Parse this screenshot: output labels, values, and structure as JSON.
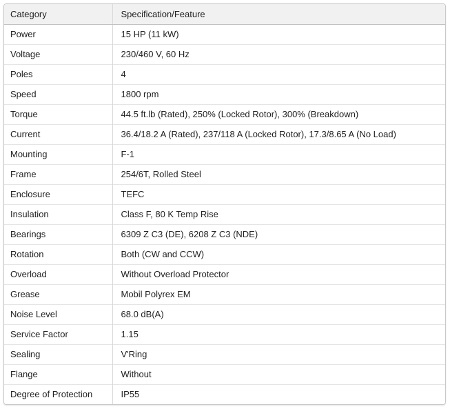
{
  "table": {
    "headers": [
      "Category",
      "Specification/Feature"
    ],
    "rows": [
      {
        "category": "Power",
        "spec": "15 HP (11 kW)"
      },
      {
        "category": "Voltage",
        "spec": "230/460 V, 60 Hz"
      },
      {
        "category": "Poles",
        "spec": "4"
      },
      {
        "category": "Speed",
        "spec": "1800 rpm"
      },
      {
        "category": "Torque",
        "spec": "44.5 ft.lb (Rated), 250% (Locked Rotor), 300% (Breakdown)"
      },
      {
        "category": "Current",
        "spec": "36.4/18.2 A (Rated), 237/118 A (Locked Rotor), 17.3/8.65 A (No Load)"
      },
      {
        "category": "Mounting",
        "spec": "F-1"
      },
      {
        "category": "Frame",
        "spec": "254/6T, Rolled Steel"
      },
      {
        "category": "Enclosure",
        "spec": "TEFC"
      },
      {
        "category": "Insulation",
        "spec": "Class F, 80 K Temp Rise"
      },
      {
        "category": "Bearings",
        "spec": "6309 Z C3 (DE), 6208 Z C3 (NDE)"
      },
      {
        "category": "Rotation",
        "spec": "Both (CW and CCW)"
      },
      {
        "category": "Overload",
        "spec": "Without Overload Protector"
      },
      {
        "category": "Grease",
        "spec": "Mobil Polyrex EM"
      },
      {
        "category": "Noise Level",
        "spec": "68.0 dB(A)"
      },
      {
        "category": "Service Factor",
        "spec": "1.15"
      },
      {
        "category": "Sealing",
        "spec": "V'Ring"
      },
      {
        "category": "Flange",
        "spec": "Without"
      },
      {
        "category": "Degree of Protection",
        "spec": "IP55"
      }
    ],
    "colors": {
      "header_bg": "#f1f1f1",
      "outer_border": "#c9c9c9",
      "header_border": "#c2c2c2",
      "row_border": "#e5e5e5",
      "column_border": "#d9d9d9",
      "text": "#212121"
    }
  },
  "chart_data": {
    "type": "table",
    "title": "",
    "columns": [
      "Category",
      "Specification/Feature"
    ],
    "rows": [
      [
        "Power",
        "15 HP (11 kW)"
      ],
      [
        "Voltage",
        "230/460 V, 60 Hz"
      ],
      [
        "Poles",
        "4"
      ],
      [
        "Speed",
        "1800 rpm"
      ],
      [
        "Torque",
        "44.5 ft.lb (Rated), 250% (Locked Rotor), 300% (Breakdown)"
      ],
      [
        "Current",
        "36.4/18.2 A (Rated), 237/118 A (Locked Rotor), 17.3/8.65 A (No Load)"
      ],
      [
        "Mounting",
        "F-1"
      ],
      [
        "Frame",
        "254/6T, Rolled Steel"
      ],
      [
        "Enclosure",
        "TEFC"
      ],
      [
        "Insulation",
        "Class F, 80 K Temp Rise"
      ],
      [
        "Bearings",
        "6309 Z C3 (DE), 6208 Z C3 (NDE)"
      ],
      [
        "Rotation",
        "Both (CW and CCW)"
      ],
      [
        "Overload",
        "Without Overload Protector"
      ],
      [
        "Grease",
        "Mobil Polyrex EM"
      ],
      [
        "Noise Level",
        "68.0 dB(A)"
      ],
      [
        "Service Factor",
        "1.15"
      ],
      [
        "Sealing",
        "V'Ring"
      ],
      [
        "Flange",
        "Without"
      ],
      [
        "Degree of Protection",
        "IP55"
      ]
    ]
  }
}
